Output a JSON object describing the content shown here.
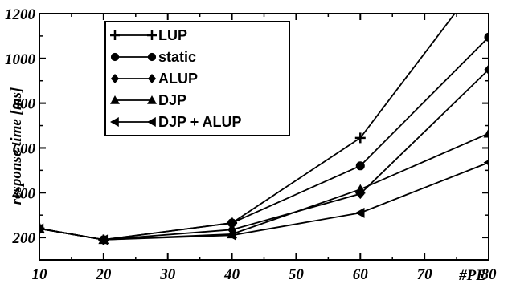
{
  "chart_data": {
    "type": "line",
    "xlabel": "#PE",
    "ylabel": "response time [ms]",
    "xlim": [
      10,
      80
    ],
    "ylim": [
      100,
      1200
    ],
    "x_ticks": [
      "10",
      "20",
      "30",
      "40",
      "50",
      "60",
      "70",
      "80"
    ],
    "y_ticks": [
      "200",
      "400",
      "600",
      "800",
      "1000",
      "1200"
    ],
    "grid": false,
    "legend_position": "top-left",
    "series": [
      {
        "name": "LUP",
        "marker": "plus",
        "x": [
          10,
          20,
          40,
          60,
          80
        ],
        "y": [
          240,
          190,
          265,
          645,
          1400
        ]
      },
      {
        "name": "static",
        "marker": "circle",
        "x": [
          10,
          20,
          40,
          60,
          80
        ],
        "y": [
          240,
          190,
          265,
          520,
          1095
        ]
      },
      {
        "name": "ALUP",
        "marker": "diamond",
        "x": [
          10,
          20,
          40,
          60,
          80
        ],
        "y": [
          240,
          190,
          235,
          395,
          950
        ]
      },
      {
        "name": "DJP",
        "marker": "triangle",
        "x": [
          10,
          20,
          40,
          60,
          80
        ],
        "y": [
          240,
          190,
          215,
          415,
          665
        ]
      },
      {
        "name": "DJP + ALUP",
        "marker": "triangle-left",
        "x": [
          10,
          20,
          40,
          60,
          80
        ],
        "y": [
          240,
          190,
          210,
          310,
          535
        ]
      }
    ]
  }
}
